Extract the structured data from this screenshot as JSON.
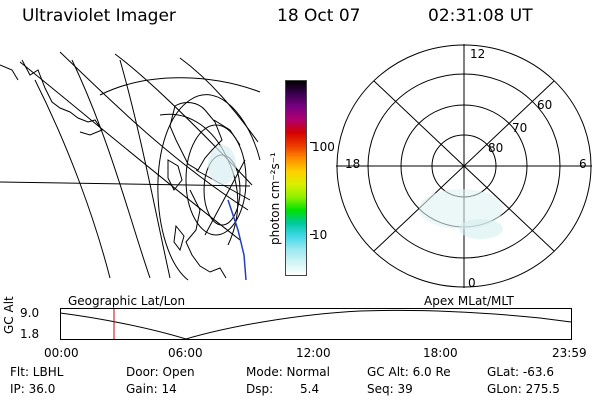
{
  "header": {
    "title": "Ultraviolet Imager",
    "date": "18 Oct 07",
    "time": "02:31:08 UT"
  },
  "colorbar": {
    "unit_label": "photon cm⁻²s⁻¹",
    "ticks": [
      "100",
      "10"
    ],
    "colors": [
      "#000000",
      "#3a0050",
      "#7a0082",
      "#b0006e",
      "#d20000",
      "#ee3a00",
      "#ff8c00",
      "#ffd000",
      "#d8f000",
      "#8cf000",
      "#00e000",
      "#00c8a0",
      "#40d8e8",
      "#9ae8f0",
      "#d0f4f4",
      "#ffffff"
    ]
  },
  "polar_plot": {
    "mlt_labels": [
      "12",
      "18",
      "6",
      "0"
    ],
    "mlat_labels": [
      "60",
      "70",
      "80"
    ]
  },
  "timeline": {
    "ylabel": "GC Alt",
    "ytick_top": "9.0",
    "ytick_bottom": "1.8",
    "left_caption": "Geographic Lat/Lon",
    "right_caption": "Apex MLat/MLT",
    "xticks": [
      "00:00",
      "06:00",
      "12:00",
      "18:00",
      "23:59"
    ],
    "marker_color": "#d00000"
  },
  "footer": {
    "flt": "Flt: LBHL",
    "door": "Door: Open",
    "mode": "Mode: Normal",
    "gcalt": "GC Alt: 6.0 Re",
    "glat": "GLat: -63.6",
    "ip": "IP: 36.0",
    "gain": "Gain: 14",
    "dsp_label": "Dsp:",
    "dsp_value": "5.4",
    "seq": "Seq: 39",
    "glon": "GLon: 275.5"
  }
}
